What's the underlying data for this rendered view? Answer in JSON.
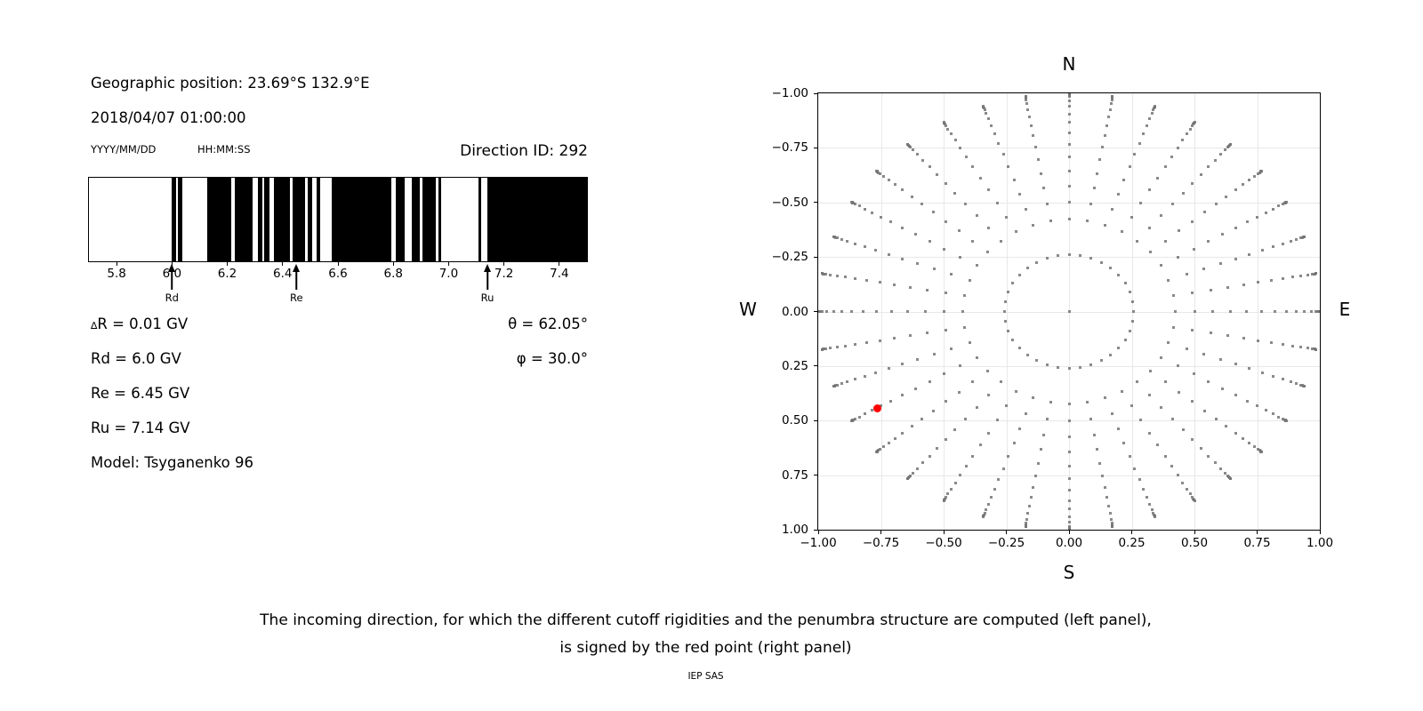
{
  "left_panel": {
    "geo_position": "Geographic position: 23.69°S 132.9°E",
    "datetime": "2018/04/07 01:00:00",
    "date_format": "YYYY/MM/DD",
    "time_format": "HH:MM:SS",
    "direction_id": "Direction ID: 292",
    "delta_symbol": "∆",
    "delta_rest": "R = 0.01 GV",
    "rd": "Rd = 6.0 GV",
    "re": "Re = 6.45 GV",
    "ru": "Ru = 7.14 GV",
    "model": "Model: Tsyganenko 96",
    "theta": "θ = 62.05°",
    "phi": "φ = 30.0°"
  },
  "right_panel": {
    "north": "N",
    "south": "S",
    "west": "W",
    "east": "E"
  },
  "caption": {
    "line1": "The incoming direction, for which the different cutoff rigidities and the penumbra structure are computed (left panel),",
    "line2": "is signed by the red point (right panel)",
    "credit": "IEP SAS"
  },
  "chart_data": [
    {
      "type": "barcode",
      "description": "Penumbra structure: black bands = allowed rigidity intervals (GV), white = forbidden",
      "xlim": [
        5.7,
        7.5
      ],
      "xticks": [
        5.8,
        6.0,
        6.2,
        6.4,
        6.6,
        6.8,
        7.0,
        7.2,
        7.4
      ],
      "xtick_labels": [
        "5.8",
        "6.0",
        "6.2",
        "6.4",
        "6.6",
        "6.8",
        "7.0",
        "7.2",
        "7.4"
      ],
      "black_bands": [
        [
          6.0,
          6.016
        ],
        [
          6.022,
          6.037
        ],
        [
          6.128,
          6.213
        ],
        [
          6.226,
          6.29
        ],
        [
          6.311,
          6.327
        ],
        [
          6.334,
          6.352
        ],
        [
          6.37,
          6.428
        ],
        [
          6.437,
          6.48
        ],
        [
          6.492,
          6.508
        ],
        [
          6.522,
          6.537
        ],
        [
          6.577,
          6.793
        ],
        [
          6.81,
          6.842
        ],
        [
          6.867,
          6.895
        ],
        [
          6.906,
          6.953
        ],
        [
          6.963,
          6.972
        ],
        [
          7.108,
          7.119
        ],
        [
          7.14,
          7.5
        ]
      ],
      "markers": [
        {
          "label": "Rd",
          "x": 6.0
        },
        {
          "label": "Re",
          "x": 6.45
        },
        {
          "label": "Ru",
          "x": 7.14
        }
      ],
      "values": {
        "delta_R_GV": 0.01,
        "Rd_GV": 6.0,
        "Re_GV": 6.45,
        "Ru_GV": 7.14,
        "theta_deg": 62.05,
        "phi_deg": 30.0,
        "model": "Tsyganenko 96"
      }
    },
    {
      "type": "scatter",
      "description": "Grid of incoming directions: radius = sin(zenith), azimuth every 10 deg; red point = selected direction",
      "xlim": [
        -1,
        1
      ],
      "ylim": [
        -1,
        1
      ],
      "tick_values": [
        -1.0,
        -0.75,
        -0.5,
        -0.25,
        0.0,
        0.25,
        0.5,
        0.75,
        1.0
      ],
      "xtick_labels": [
        "−1.00",
        "−0.75",
        "−0.50",
        "−0.25",
        "0.00",
        "0.25",
        "0.50",
        "0.75",
        "1.00"
      ],
      "ytick_labels": [
        "1.00",
        "0.75",
        "0.50",
        "0.25",
        "0.00",
        "−0.25",
        "−0.50",
        "−0.75",
        "−1.00"
      ],
      "grid": true,
      "grid_color": "#e8e8e8",
      "dot_color": "rgba(118,118,118,0.85)",
      "structure": {
        "azimuth_step_deg": 10,
        "ring_zenith_deg": 15,
        "spoke_zenith_deg": [
          25,
          30,
          35,
          40,
          45,
          50,
          55,
          60,
          65,
          70,
          75,
          80,
          82.5,
          85,
          87.5,
          90
        ],
        "radius_rule": "sin(zenith)",
        "center_dot": true
      },
      "red_point": {
        "x": -0.765,
        "y": -0.442,
        "zenith_deg": 62.05,
        "azimuth_deg": 30.0,
        "color": "#ff0000"
      }
    }
  ]
}
